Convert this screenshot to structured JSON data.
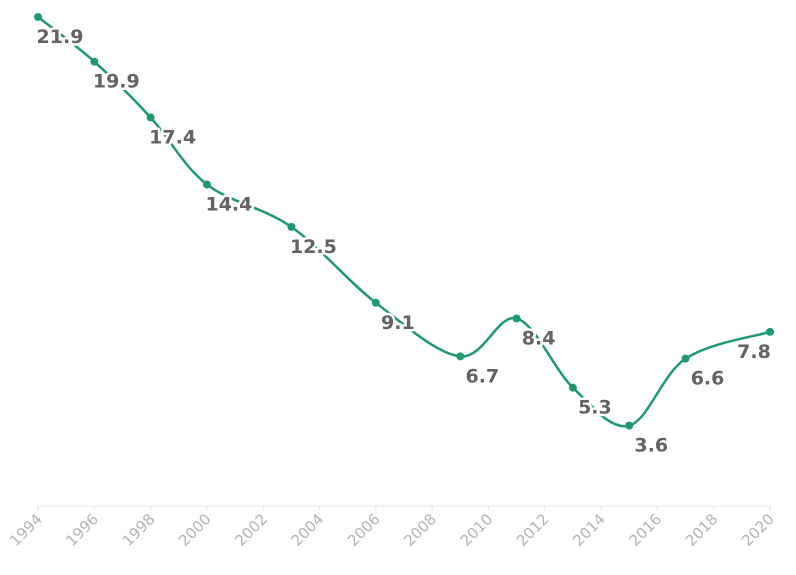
{
  "chart_data": {
    "type": "line",
    "x": [
      1994,
      1996,
      1998,
      2000,
      2003,
      2006,
      2009,
      2011,
      2013,
      2015,
      2017,
      2020
    ],
    "series": [
      {
        "values": [
          21.9,
          19.9,
          17.4,
          14.4,
          12.5,
          9.1,
          6.7,
          8.4,
          5.3,
          3.6,
          6.6,
          7.8
        ]
      }
    ],
    "data_labels": [
      "21.9",
      "19.9",
      "17.4",
      "14.4",
      "12.5",
      "9.1",
      "6.7",
      "8.4",
      "5.3",
      "3.6",
      "6.6",
      "7.8"
    ],
    "x_ticks": [
      "1994",
      "1996",
      "1998",
      "2000",
      "2002",
      "2004",
      "2006",
      "2008",
      "2010",
      "2012",
      "2014",
      "2016",
      "2018",
      "2020"
    ],
    "xlim": [
      1994,
      2020
    ],
    "ylim": [
      0,
      22
    ],
    "title": "",
    "xlabel": "",
    "ylabel": "",
    "grid": false,
    "legend": "none",
    "colors": {
      "line": "#1e9970",
      "label": "#636363",
      "tick": "#b3b3b3",
      "axis": "#e6e6e6"
    }
  }
}
